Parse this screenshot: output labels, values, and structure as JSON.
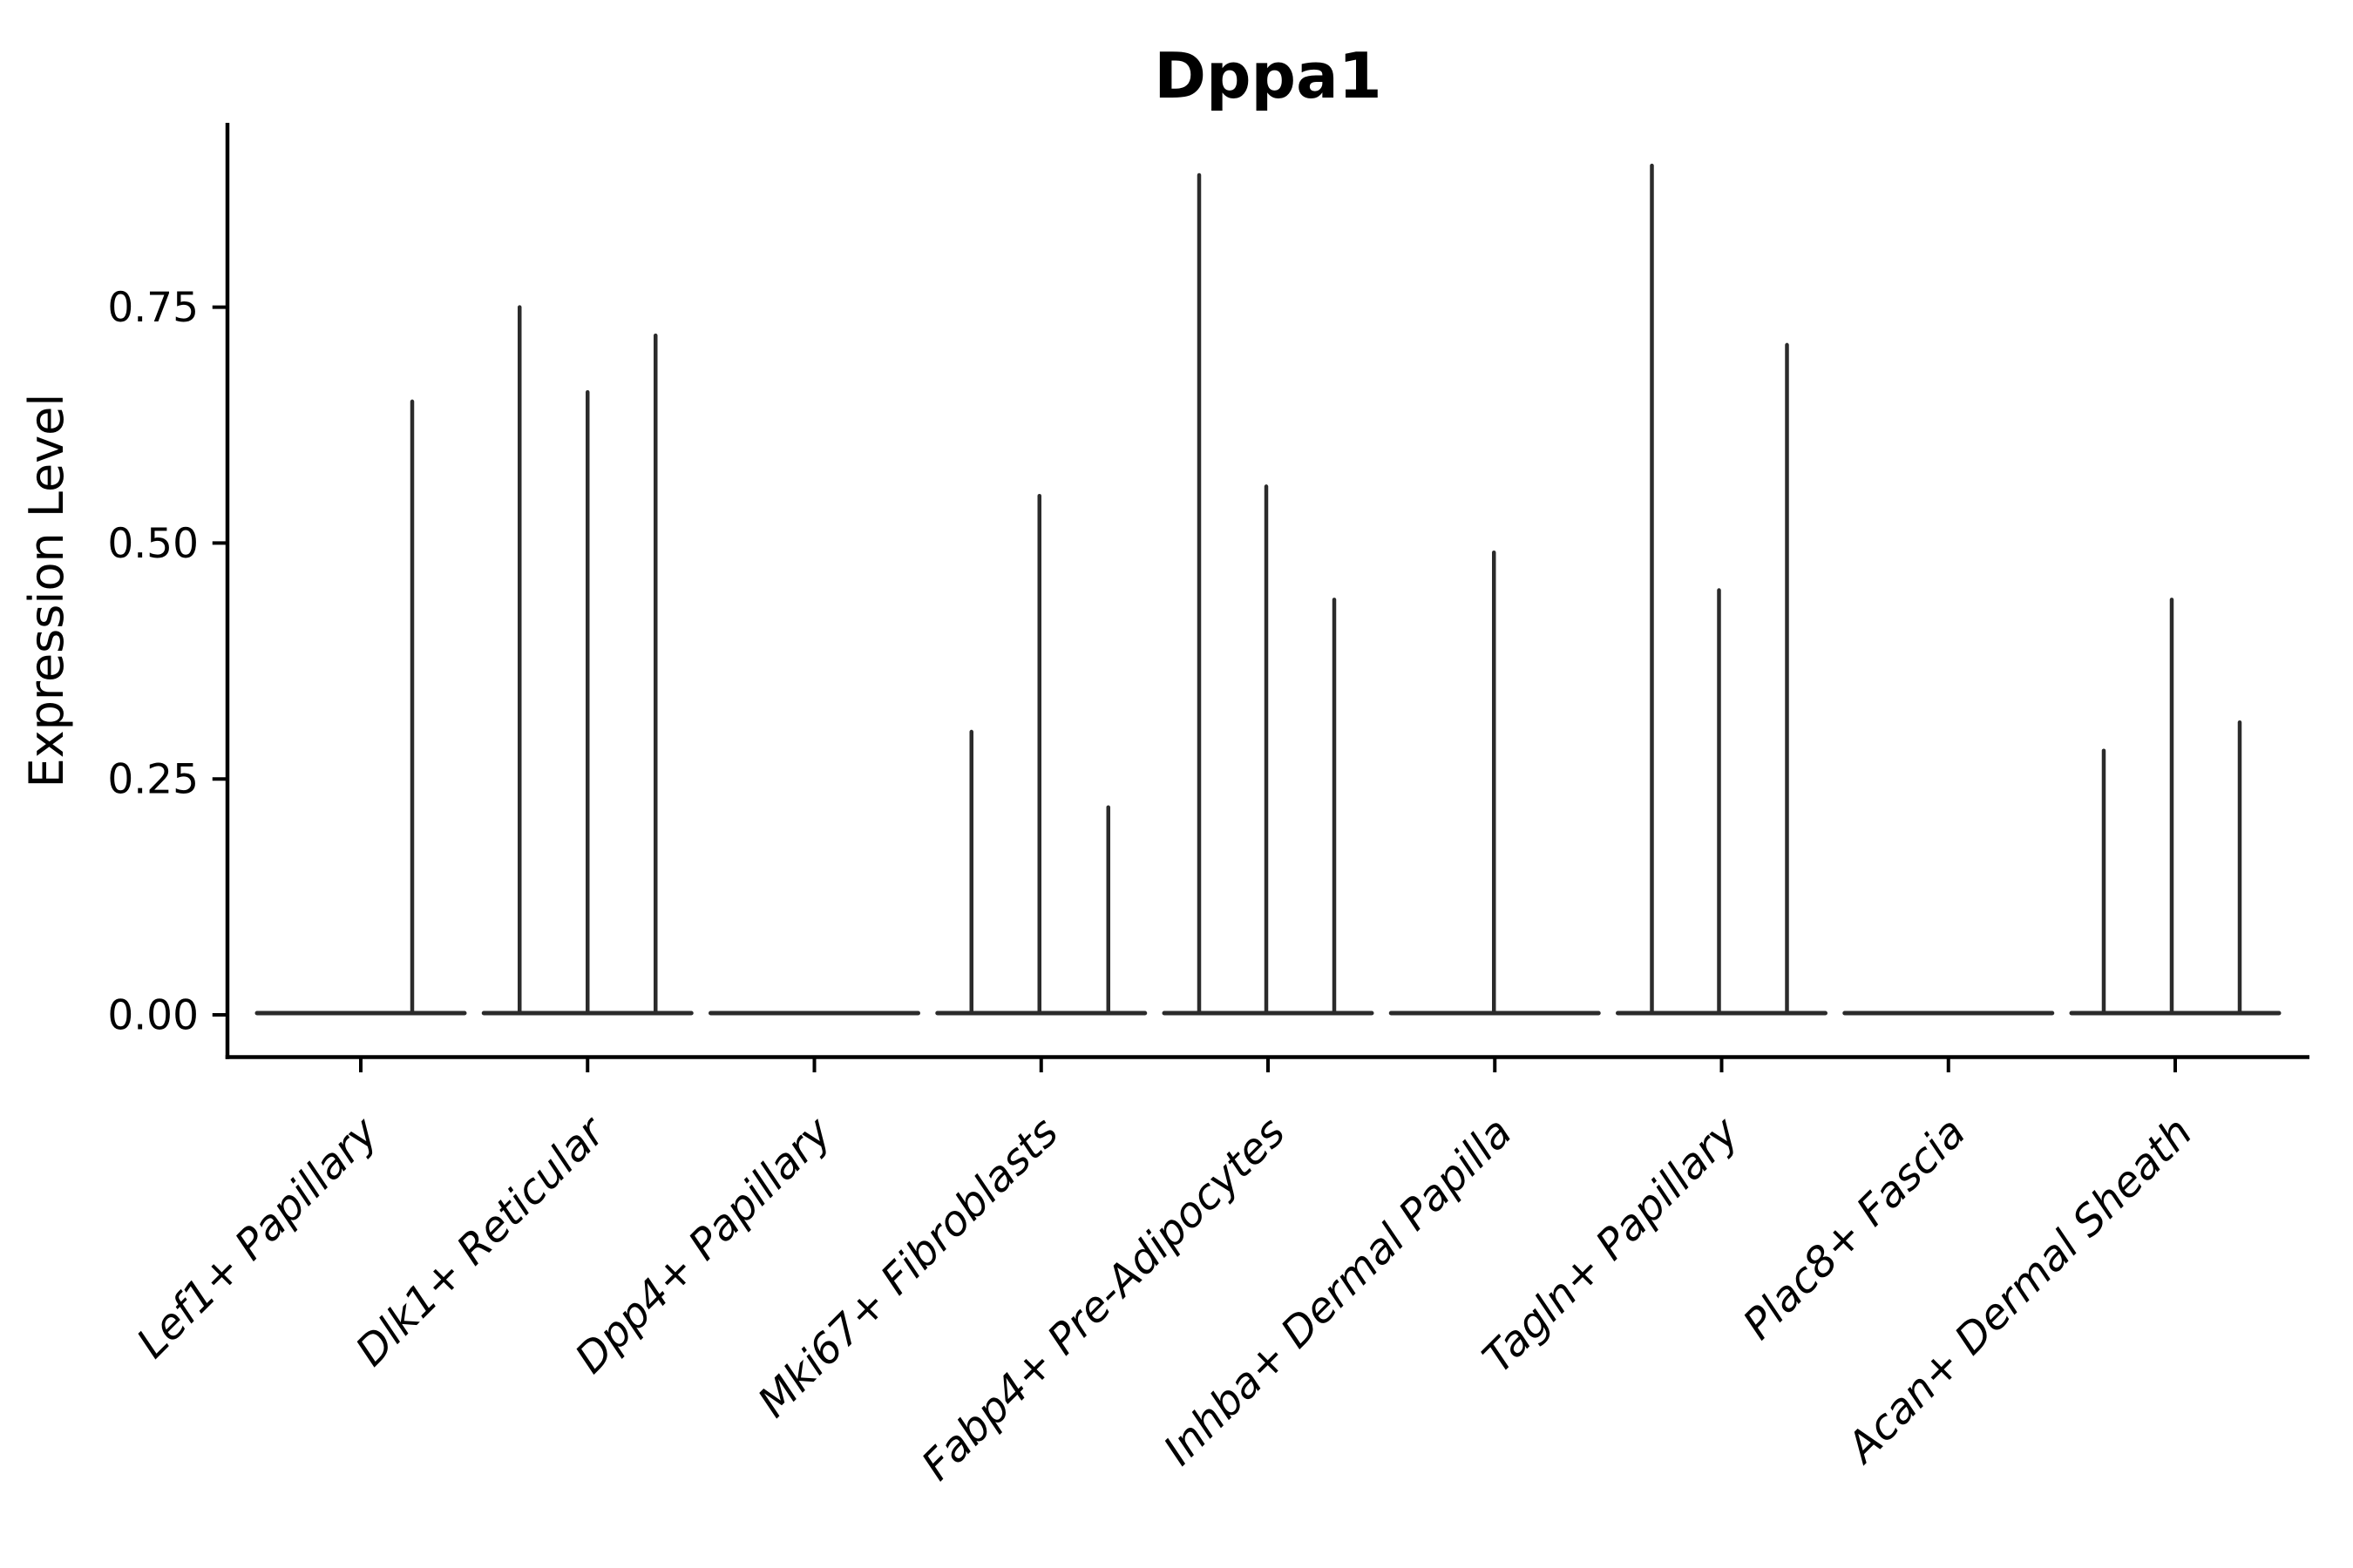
{
  "title": "Dppa1",
  "chart_data": {
    "type": "violin",
    "title": "Dppa1",
    "xlabel": "",
    "ylabel": "Expression Level",
    "yticks": [
      0,
      0.25,
      0.5,
      0.75
    ],
    "ytick_labels": [
      "0.00",
      "0.25",
      "0.50",
      "0.75"
    ],
    "ylim": [
      -0.045,
      0.945
    ],
    "grid": false,
    "legend": null,
    "categories": [
      "Lef1+ Papillary",
      "Dlk1+ Reticular",
      "Dpp4+ Papillary",
      "Mki67+ Fibroblasts",
      "Fabp4+ Pre-Adipocytes",
      "Inhba+ Dermal Papilla",
      "Tagln+ Papillary",
      "Plac8+ Fascia",
      "Acan+ Dermal Sheath"
    ],
    "series": [
      {
        "category": "Lef1+ Papillary",
        "baseline": 0,
        "spikes": [
          {
            "dx": 59,
            "value": 0.65
          }
        ]
      },
      {
        "category": "Dlk1+ Reticular",
        "baseline": 0,
        "spikes": [
          {
            "dx": -78,
            "value": 0.75
          },
          {
            "dx": 0,
            "value": 0.66
          },
          {
            "dx": 78,
            "value": 0.72
          }
        ]
      },
      {
        "category": "Dpp4+ Papillary",
        "baseline": 0,
        "spikes": []
      },
      {
        "category": "Mki67+ Fibroblasts",
        "baseline": 0,
        "spikes": [
          {
            "dx": -80,
            "value": 0.3
          },
          {
            "dx": -2,
            "value": 0.55
          },
          {
            "dx": 77,
            "value": 0.22
          }
        ]
      },
      {
        "category": "Fabp4+ Pre-Adipocytes",
        "baseline": 0,
        "spikes": [
          {
            "dx": -79,
            "value": 0.89
          },
          {
            "dx": -2,
            "value": 0.56
          },
          {
            "dx": 76,
            "value": 0.44
          }
        ]
      },
      {
        "category": "Inhba+ Dermal Papilla",
        "baseline": 0,
        "spikes": [
          {
            "dx": -1,
            "value": 0.49
          }
        ]
      },
      {
        "category": "Tagln+ Papillary",
        "baseline": 0,
        "spikes": [
          {
            "dx": -80,
            "value": 0.9
          },
          {
            "dx": -3,
            "value": 0.45
          },
          {
            "dx": 75,
            "value": 0.71
          }
        ]
      },
      {
        "category": "Plac8+ Fascia",
        "baseline": 0,
        "spikes": []
      },
      {
        "category": "Acan+ Dermal Sheath",
        "baseline": 0,
        "spikes": [
          {
            "dx": -82,
            "value": 0.28
          },
          {
            "dx": -4,
            "value": 0.44
          },
          {
            "dx": 74,
            "value": 0.31
          }
        ]
      }
    ],
    "colors": {
      "violin": "#2b2b2b",
      "axis": "#000000",
      "text": "#000000"
    }
  }
}
